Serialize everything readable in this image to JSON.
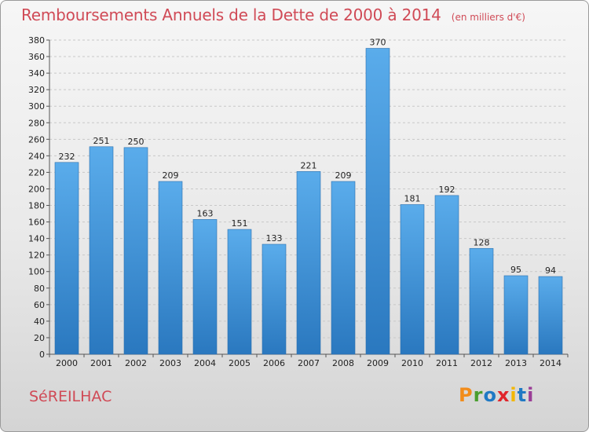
{
  "header": {
    "title": "Remboursements Annuels de la Dette de 2000 à 2014",
    "subtitle": "(en milliers d'€)"
  },
  "footer": {
    "place": "SéREILHAC",
    "brand": "Proxiti"
  },
  "colors": {
    "title": "#d04a56",
    "bar_top": "#5aaceb",
    "bar_bottom": "#2a78bf",
    "grid": "#c8c8c8",
    "brand_letters": [
      "#f28c1a",
      "#4a9e2f",
      "#1f79c4",
      "#e0252b",
      "#f2b705",
      "#1f79c4",
      "#9a3d96"
    ]
  },
  "chart_data": {
    "type": "bar",
    "title": "Remboursements Annuels de la Dette de 2000 à 2014",
    "categories": [
      "2000",
      "2001",
      "2002",
      "2003",
      "2004",
      "2005",
      "2006",
      "2007",
      "2008",
      "2009",
      "2010",
      "2011",
      "2012",
      "2013",
      "2014"
    ],
    "values": [
      232,
      251,
      250,
      209,
      163,
      151,
      133,
      221,
      209,
      370,
      181,
      192,
      128,
      95,
      94
    ],
    "ylim": [
      0,
      380
    ],
    "yticks": [
      0,
      20,
      40,
      60,
      80,
      100,
      120,
      140,
      160,
      180,
      200,
      220,
      240,
      260,
      280,
      300,
      320,
      340,
      360,
      380
    ],
    "grid": true,
    "legend": "none"
  }
}
